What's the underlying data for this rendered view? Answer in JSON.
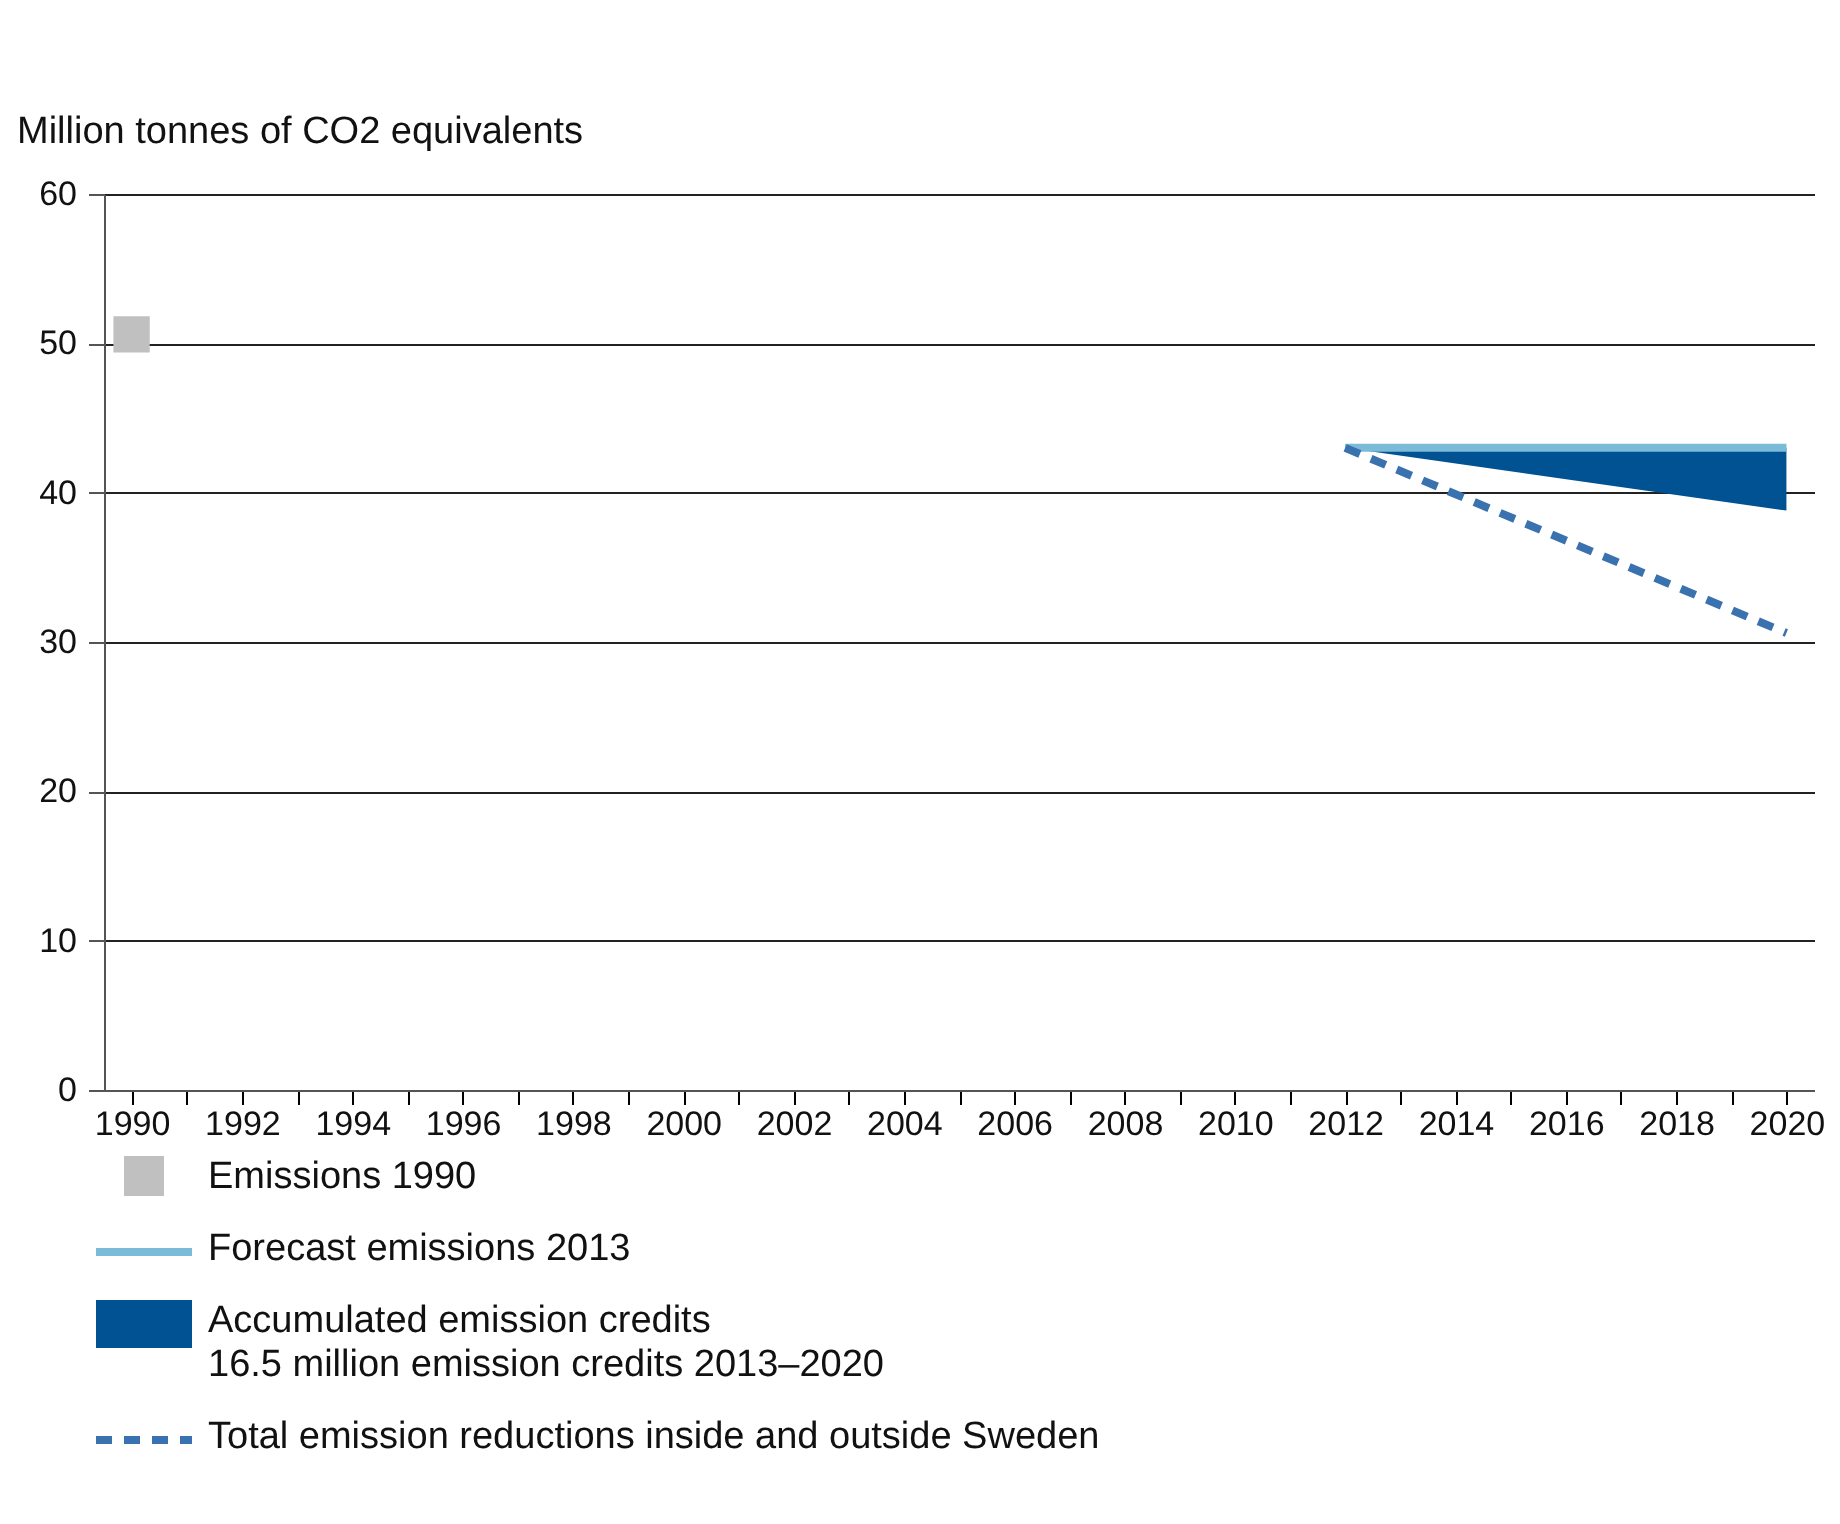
{
  "chart_data": {
    "type": "line",
    "ylabel": "Million tonnes of CO2 equivalents",
    "series": [
      {
        "name": "Emissions 1990",
        "type": "scatter",
        "marker": "square",
        "color": "#c0c0c0",
        "x": [
          1990
        ],
        "values": [
          50.6
        ]
      },
      {
        "name": "Forecast emissions 2013",
        "color": "#7bbbd8",
        "x": [
          2012,
          2020
        ],
        "values": [
          43,
          43
        ]
      },
      {
        "name": "Accumulated emission credits",
        "type": "area",
        "color": "#005293",
        "x": [
          2012,
          2020
        ],
        "values": [
          43,
          38.8
        ]
      },
      {
        "name": "Total emission reductions inside and outside Sweden",
        "type": "line",
        "line_style": "dashed",
        "color": "#3a72b0",
        "x": [
          2012,
          2020
        ],
        "values": [
          43,
          30.6
        ]
      }
    ],
    "annotations": [
      "16.5 million emission credits 2013–2020"
    ],
    "xlim": [
      1989.5,
      2020.5
    ],
    "xticks": [
      1990,
      {
        "value": 1991,
        "label": null
      },
      1992,
      {
        "value": 1993,
        "label": null
      },
      1994,
      {
        "value": 1995,
        "label": null
      },
      1996,
      {
        "value": 1997,
        "label": null
      },
      1998,
      {
        "value": 1999,
        "label": null
      },
      2000,
      {
        "value": 2001,
        "label": null
      },
      2002,
      {
        "value": 2003,
        "label": null
      },
      2004,
      {
        "value": 2005,
        "label": null
      },
      2006,
      {
        "value": 2007,
        "label": null
      },
      2008,
      {
        "value": 2009,
        "label": null
      },
      2010,
      {
        "value": 2011,
        "label": null
      },
      2012,
      {
        "value": 2013,
        "label": null
      },
      2014,
      {
        "value": 2015,
        "label": null
      },
      2016,
      {
        "value": 2017,
        "label": null
      },
      2018,
      {
        "value": 2019,
        "label": null
      },
      2020
    ],
    "ylim": [
      0,
      60
    ],
    "yticks": [
      0,
      10,
      20,
      30,
      40,
      50,
      60
    ],
    "grid": "y",
    "legend": "bottom"
  }
}
